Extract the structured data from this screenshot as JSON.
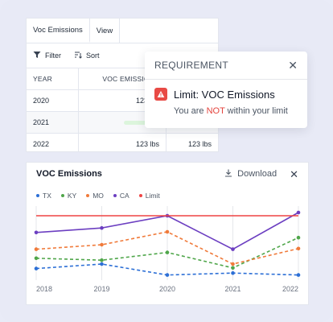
{
  "table": {
    "tabs": [
      {
        "label": "Voc Emissions"
      },
      {
        "label": "View"
      }
    ],
    "toolbar": {
      "filter_label": "Filter",
      "sort_label": "Sort"
    },
    "columns": {
      "year": "YEAR",
      "voc": "VOC EMISSIONS"
    },
    "rows": [
      {
        "year": "2020",
        "voc": "123 lbs",
        "voc2": ""
      },
      {
        "year": "2021",
        "voc": "",
        "voc2": ""
      },
      {
        "year": "2022",
        "voc": "123 lbs",
        "voc2": "123 lbs"
      }
    ]
  },
  "requirement": {
    "title": "REQUIREMENT",
    "limit_title": "Limit: VOC Emissions",
    "message_before": "You are ",
    "message_highlight": "NOT",
    "message_after": " within your limit"
  },
  "chart_header": {
    "title": "VOC Emissions",
    "download_label": "Download"
  },
  "colors": {
    "TX": "#2c6fd6",
    "KY": "#4fa64a",
    "MO": "#f07a3a",
    "CA": "#6c3fc1",
    "Limit": "#ef4444",
    "grid": "#e5e7eb"
  },
  "chart_data": {
    "type": "line",
    "title": "VOC Emissions",
    "x": [
      "2018",
      "2019",
      "2020",
      "2021",
      "2022"
    ],
    "ylim": [
      0,
      100
    ],
    "grid": "vertical",
    "legend_position": "top-left",
    "series": [
      {
        "name": "TX",
        "style": "dashed",
        "values": [
          13,
          20,
          3,
          6,
          3
        ]
      },
      {
        "name": "KY",
        "style": "dashed",
        "values": [
          29,
          26,
          38,
          14,
          61
        ]
      },
      {
        "name": "MO",
        "style": "dashed",
        "values": [
          43,
          50,
          70,
          20,
          44
        ]
      },
      {
        "name": "CA",
        "style": "solid",
        "values": [
          69,
          76,
          95,
          43,
          100
        ]
      },
      {
        "name": "Limit",
        "style": "solid",
        "values": [
          95,
          95,
          95,
          95,
          95
        ]
      }
    ]
  }
}
